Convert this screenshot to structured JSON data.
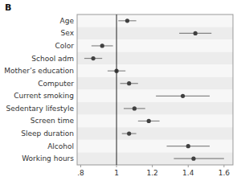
{
  "chart_data": {
    "type": "forest",
    "title": "B",
    "orientation": "horizontal",
    "categories": [
      "Age",
      "Sex",
      "Color",
      "School adm",
      "Mother’s education",
      "Computer",
      "Current smoking",
      "Sedentary lifestyle",
      "Screen time",
      "Sleep duration",
      "Alcohol",
      "Working hours"
    ],
    "values": [
      1.06,
      1.44,
      0.92,
      0.87,
      1.0,
      1.07,
      1.37,
      1.1,
      1.18,
      1.07,
      1.4,
      1.43
    ],
    "ci_lo": [
      1.01,
      1.35,
      0.86,
      0.82,
      0.95,
      1.02,
      1.22,
      1.04,
      1.12,
      1.03,
      1.28,
      1.32
    ],
    "ci_hi": [
      1.11,
      1.53,
      0.98,
      0.92,
      1.05,
      1.12,
      1.52,
      1.16,
      1.24,
      1.11,
      1.52,
      1.6
    ],
    "xlim": [
      0.78,
      1.65
    ],
    "xticks": [
      {
        "value": 0.8,
        "label": ".8"
      },
      1,
      1.2,
      1.4,
      1.6
    ],
    "reference_line": 1,
    "color": "#404040",
    "grid": false
  }
}
